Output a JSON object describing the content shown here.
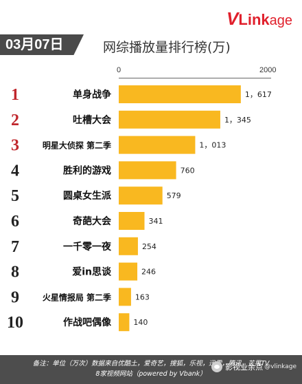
{
  "logo": {
    "v": "V",
    "link": "Link",
    "age": "age"
  },
  "date_label": "03月07日",
  "title": "网综播放量排行榜(万)",
  "footer": {
    "line1": "备注：单位（万次）数据来自优酷土，爱奇艺，搜狐，乐视，迅雷，腾讯，芒果TV",
    "line2": "8家视频网站（powered by Vbank）"
  },
  "watermark": {
    "text": "影视业余点",
    "handle": "@vlinkage"
  },
  "colors": {
    "bar": "#f9b820",
    "rank": "#c0272d",
    "rank_alt": "#222222",
    "footer": "#4d4d4d"
  },
  "chart_data": {
    "type": "bar",
    "orientation": "horizontal",
    "title": "网综播放量排行榜(万)",
    "xlim": [
      0,
      2000
    ],
    "x_ticks": [
      "0",
      "2000"
    ],
    "ranks": [
      "1",
      "2",
      "3",
      "4",
      "5",
      "6",
      "7",
      "8",
      "9",
      "10"
    ],
    "categories": [
      "单身战争",
      "吐槽大会",
      "明星大侦探 第二季",
      "胜利的游戏",
      "圆桌女生派",
      "奇葩大会",
      "一千零一夜",
      "爱in思谈",
      "火星情报局 第二季",
      "作战吧偶像"
    ],
    "values": [
      1617,
      1345,
      1013,
      760,
      579,
      341,
      254,
      246,
      163,
      140
    ],
    "value_labels": [
      "1，617",
      "1，345",
      "1，013",
      "760",
      "579",
      "341",
      "254",
      "246",
      "163",
      "140"
    ]
  }
}
